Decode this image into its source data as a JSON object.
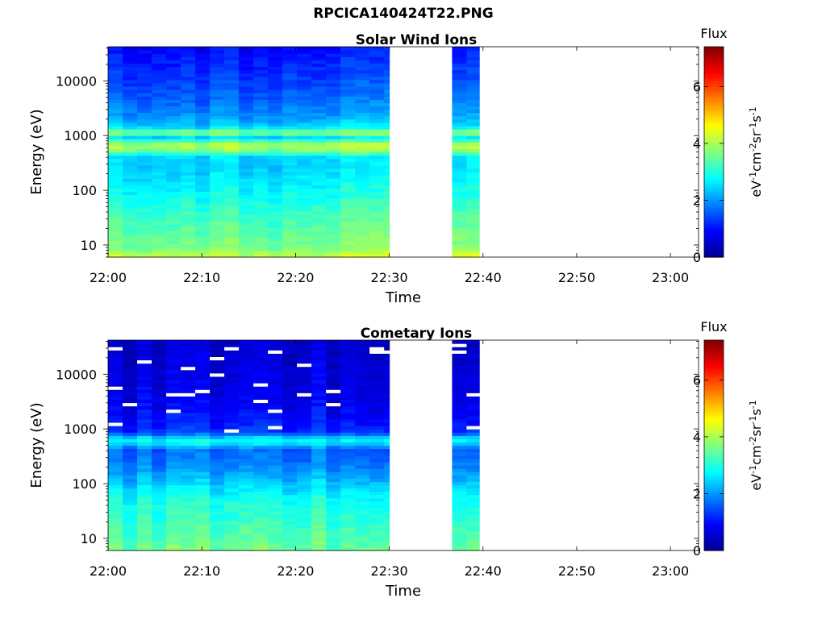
{
  "figure_title": "RPCICA140424T22.PNG",
  "colormap": [
    "#00008f",
    "#0000ff",
    "#0080ff",
    "#00ffff",
    "#80ff80",
    "#ffff00",
    "#ff8000",
    "#ff0000",
    "#800000"
  ],
  "chart_data": [
    {
      "type": "heatmap",
      "title": "Solar Wind Ions",
      "xlabel": "Time",
      "ylabel": "Energy (eV)",
      "x_ticks": [
        "22:00",
        "22:10",
        "22:20",
        "22:30",
        "22:40",
        "22:50",
        "23:00"
      ],
      "x_range_minutes": [
        0,
        63
      ],
      "y_scale": "log",
      "y_ticks": [
        "10",
        "100",
        "1000",
        "10000"
      ],
      "y_range": [
        6,
        42000
      ],
      "colorbar": {
        "title": "Flux",
        "label": "eV-1 cm-2 sr-1 s-1",
        "ticks": [
          "0",
          "2",
          "4",
          "6"
        ],
        "range": [
          0,
          7.4
        ]
      },
      "data_gap_minutes": [
        [
          30,
          36.7
        ],
        [
          39.6,
          63
        ]
      ],
      "data_time_ranges_minutes": [
        [
          0,
          30
        ],
        [
          36.7,
          39.6
        ]
      ],
      "profile": [
        [
          6,
          4.3
        ],
        [
          9,
          3.7
        ],
        [
          14,
          3.6
        ],
        [
          24,
          3.4
        ],
        [
          44,
          3.2
        ],
        [
          65,
          3.0
        ],
        [
          110,
          2.8
        ],
        [
          200,
          2.6
        ],
        [
          320,
          2.5
        ],
        [
          420,
          2.6
        ],
        [
          520,
          3.7
        ],
        [
          640,
          4.1
        ],
        [
          760,
          3.8
        ],
        [
          900,
          2.5
        ],
        [
          1000,
          2.7
        ],
        [
          1100,
          3.8
        ],
        [
          1250,
          3.6
        ],
        [
          1450,
          2.5
        ],
        [
          2500,
          2.0
        ],
        [
          6000,
          1.6
        ],
        [
          15000,
          1.3
        ],
        [
          30000,
          1.1
        ],
        [
          42000,
          1.0
        ]
      ]
    },
    {
      "type": "heatmap",
      "title": "Cometary Ions",
      "xlabel": "Time",
      "ylabel": "Energy (eV)",
      "x_ticks": [
        "22:00",
        "22:10",
        "22:20",
        "22:30",
        "22:40",
        "22:50",
        "23:00"
      ],
      "x_range_minutes": [
        0,
        63
      ],
      "y_scale": "log",
      "y_ticks": [
        "10",
        "100",
        "1000",
        "10000"
      ],
      "y_range": [
        6,
        42000
      ],
      "colorbar": {
        "title": "Flux",
        "label": "eV-1 cm-2 sr-1 s-1",
        "ticks": [
          "0",
          "2",
          "4",
          "6"
        ],
        "range": [
          0,
          7.4
        ]
      },
      "data_gap_minutes": [
        [
          30,
          36.7
        ],
        [
          39.6,
          63
        ]
      ],
      "data_time_ranges_minutes": [
        [
          0,
          30
        ],
        [
          36.7,
          39.6
        ]
      ],
      "profile": [
        [
          6,
          3.6
        ],
        [
          9,
          3.4
        ],
        [
          14,
          3.3
        ],
        [
          24,
          3.1
        ],
        [
          44,
          3.0
        ],
        [
          80,
          2.6
        ],
        [
          130,
          2.2
        ],
        [
          200,
          1.9
        ],
        [
          300,
          1.7
        ],
        [
          420,
          1.6
        ],
        [
          520,
          2.4
        ],
        [
          600,
          2.8
        ],
        [
          700,
          2.4
        ],
        [
          850,
          1.4
        ],
        [
          1200,
          1.1
        ],
        [
          2000,
          0.9
        ],
        [
          5000,
          0.7
        ],
        [
          15000,
          0.6
        ],
        [
          42000,
          0.5
        ]
      ]
    }
  ]
}
